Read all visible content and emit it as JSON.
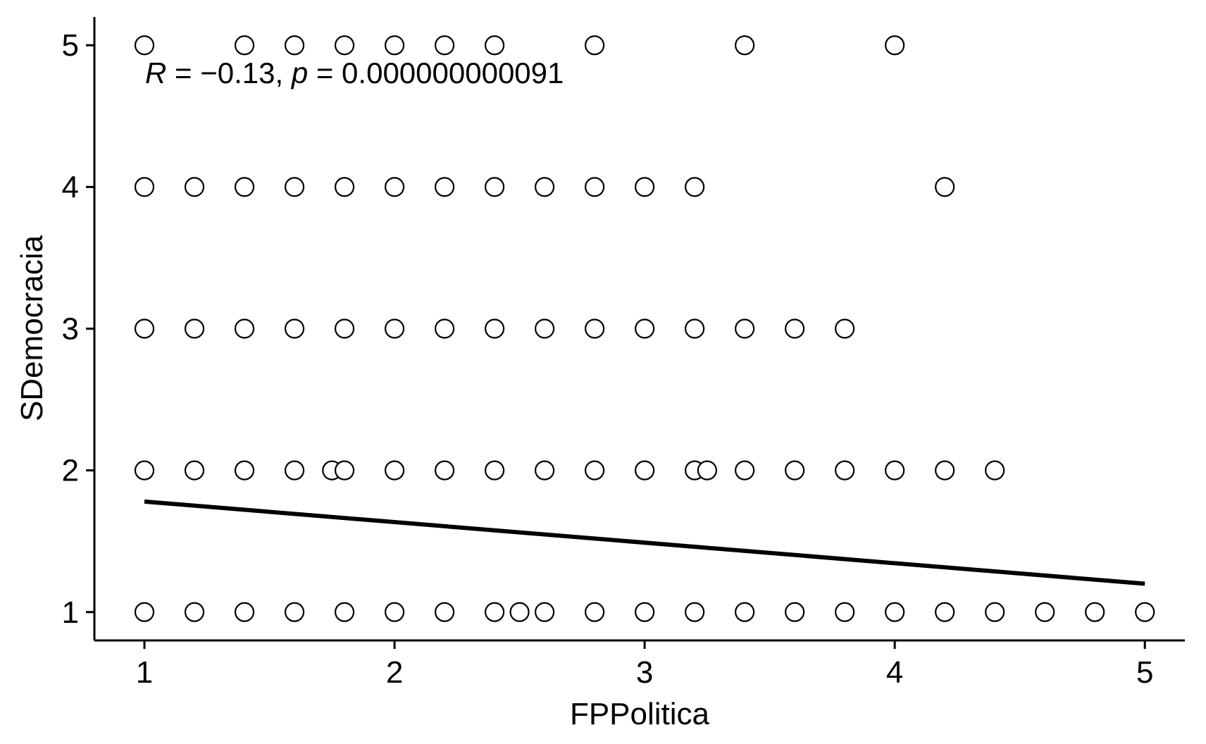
{
  "chart_data": {
    "type": "scatter",
    "title": "",
    "xlabel": "FPPolitica",
    "ylabel": "SDemocracia",
    "xlim": [
      0.8,
      5.16
    ],
    "ylim": [
      0.8,
      5.2
    ],
    "x_ticks": [
      1,
      2,
      3,
      4,
      5
    ],
    "y_ticks": [
      1,
      2,
      3,
      4,
      5
    ],
    "x_tick_labels": [
      "1",
      "2",
      "3",
      "4",
      "5"
    ],
    "y_tick_labels": [
      "1",
      "2",
      "3",
      "4",
      "5"
    ],
    "grid": false,
    "annotation": {
      "r_symbol": "R",
      "r_text": " = −0.13, ",
      "p_symbol": "p",
      "p_text": " = 0.000000000091"
    },
    "points": [
      {
        "x": 1.0,
        "y": 5
      },
      {
        "x": 1.4,
        "y": 5
      },
      {
        "x": 1.6,
        "y": 5
      },
      {
        "x": 1.8,
        "y": 5
      },
      {
        "x": 2.0,
        "y": 5
      },
      {
        "x": 2.2,
        "y": 5
      },
      {
        "x": 2.4,
        "y": 5
      },
      {
        "x": 2.8,
        "y": 5
      },
      {
        "x": 3.4,
        "y": 5
      },
      {
        "x": 4.0,
        "y": 5
      },
      {
        "x": 1.0,
        "y": 4
      },
      {
        "x": 1.2,
        "y": 4
      },
      {
        "x": 1.4,
        "y": 4
      },
      {
        "x": 1.6,
        "y": 4
      },
      {
        "x": 1.8,
        "y": 4
      },
      {
        "x": 2.0,
        "y": 4
      },
      {
        "x": 2.2,
        "y": 4
      },
      {
        "x": 2.4,
        "y": 4
      },
      {
        "x": 2.6,
        "y": 4
      },
      {
        "x": 2.8,
        "y": 4
      },
      {
        "x": 3.0,
        "y": 4
      },
      {
        "x": 3.2,
        "y": 4
      },
      {
        "x": 4.2,
        "y": 4
      },
      {
        "x": 1.0,
        "y": 3
      },
      {
        "x": 1.2,
        "y": 3
      },
      {
        "x": 1.4,
        "y": 3
      },
      {
        "x": 1.6,
        "y": 3
      },
      {
        "x": 1.8,
        "y": 3
      },
      {
        "x": 2.0,
        "y": 3
      },
      {
        "x": 2.2,
        "y": 3
      },
      {
        "x": 2.4,
        "y": 3
      },
      {
        "x": 2.6,
        "y": 3
      },
      {
        "x": 2.8,
        "y": 3
      },
      {
        "x": 3.0,
        "y": 3
      },
      {
        "x": 3.2,
        "y": 3
      },
      {
        "x": 3.4,
        "y": 3
      },
      {
        "x": 3.6,
        "y": 3
      },
      {
        "x": 3.8,
        "y": 3
      },
      {
        "x": 1.0,
        "y": 2
      },
      {
        "x": 1.2,
        "y": 2
      },
      {
        "x": 1.4,
        "y": 2
      },
      {
        "x": 1.6,
        "y": 2
      },
      {
        "x": 1.75,
        "y": 2
      },
      {
        "x": 1.8,
        "y": 2
      },
      {
        "x": 2.0,
        "y": 2
      },
      {
        "x": 2.2,
        "y": 2
      },
      {
        "x": 2.4,
        "y": 2
      },
      {
        "x": 2.6,
        "y": 2
      },
      {
        "x": 2.8,
        "y": 2
      },
      {
        "x": 3.0,
        "y": 2
      },
      {
        "x": 3.2,
        "y": 2
      },
      {
        "x": 3.25,
        "y": 2
      },
      {
        "x": 3.4,
        "y": 2
      },
      {
        "x": 3.6,
        "y": 2
      },
      {
        "x": 3.8,
        "y": 2
      },
      {
        "x": 4.0,
        "y": 2
      },
      {
        "x": 4.2,
        "y": 2
      },
      {
        "x": 4.4,
        "y": 2
      },
      {
        "x": 1.0,
        "y": 1
      },
      {
        "x": 1.2,
        "y": 1
      },
      {
        "x": 1.4,
        "y": 1
      },
      {
        "x": 1.6,
        "y": 1
      },
      {
        "x": 1.8,
        "y": 1
      },
      {
        "x": 2.0,
        "y": 1
      },
      {
        "x": 2.2,
        "y": 1
      },
      {
        "x": 2.4,
        "y": 1
      },
      {
        "x": 2.5,
        "y": 1
      },
      {
        "x": 2.6,
        "y": 1
      },
      {
        "x": 2.8,
        "y": 1
      },
      {
        "x": 3.0,
        "y": 1
      },
      {
        "x": 3.2,
        "y": 1
      },
      {
        "x": 3.4,
        "y": 1
      },
      {
        "x": 3.6,
        "y": 1
      },
      {
        "x": 3.8,
        "y": 1
      },
      {
        "x": 4.0,
        "y": 1
      },
      {
        "x": 4.2,
        "y": 1
      },
      {
        "x": 4.4,
        "y": 1
      },
      {
        "x": 4.6,
        "y": 1
      },
      {
        "x": 4.8,
        "y": 1
      },
      {
        "x": 5.0,
        "y": 1
      }
    ],
    "fit_line": {
      "x": [
        1,
        5
      ],
      "y": [
        1.78,
        1.2
      ]
    }
  }
}
